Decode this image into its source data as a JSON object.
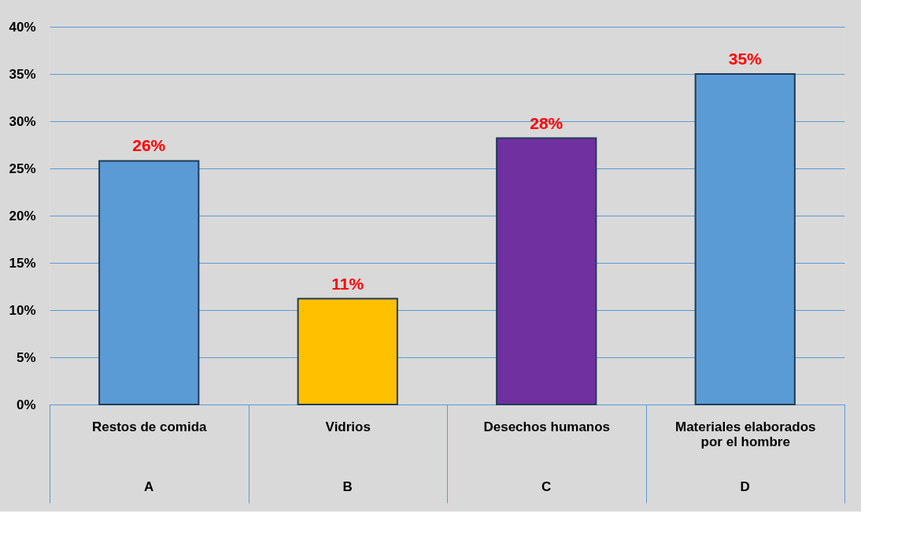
{
  "chart_data": {
    "type": "bar",
    "categories": [
      "Restos de comida",
      "Vidrios",
      "Desechos humanos",
      "Materiales elaborados por el hombre"
    ],
    "values": [
      25.8,
      11.2,
      28.2,
      35
    ],
    "colors": [
      "#5b9bd5",
      "#ffc000",
      "#7030a0",
      "#5b9bd5"
    ],
    "value_labels": [
      "26%",
      "11%",
      "28%",
      "35%"
    ],
    "ylim": [
      0,
      40
    ],
    "yticks": [
      {
        "value": 0,
        "label": "0%"
      },
      {
        "value": 5,
        "label": "5%"
      },
      {
        "value": 10,
        "label": "10%"
      },
      {
        "value": 15,
        "label": "15%"
      },
      {
        "value": 20,
        "label": "20%"
      },
      {
        "value": 25,
        "label": "25%"
      },
      {
        "value": 30,
        "label": "30%"
      },
      {
        "value": 35,
        "label": "35%"
      },
      {
        "value": 40,
        "label": "40%"
      }
    ],
    "annotations": [
      "A",
      "B",
      "C",
      "D"
    ],
    "grid": "y"
  }
}
